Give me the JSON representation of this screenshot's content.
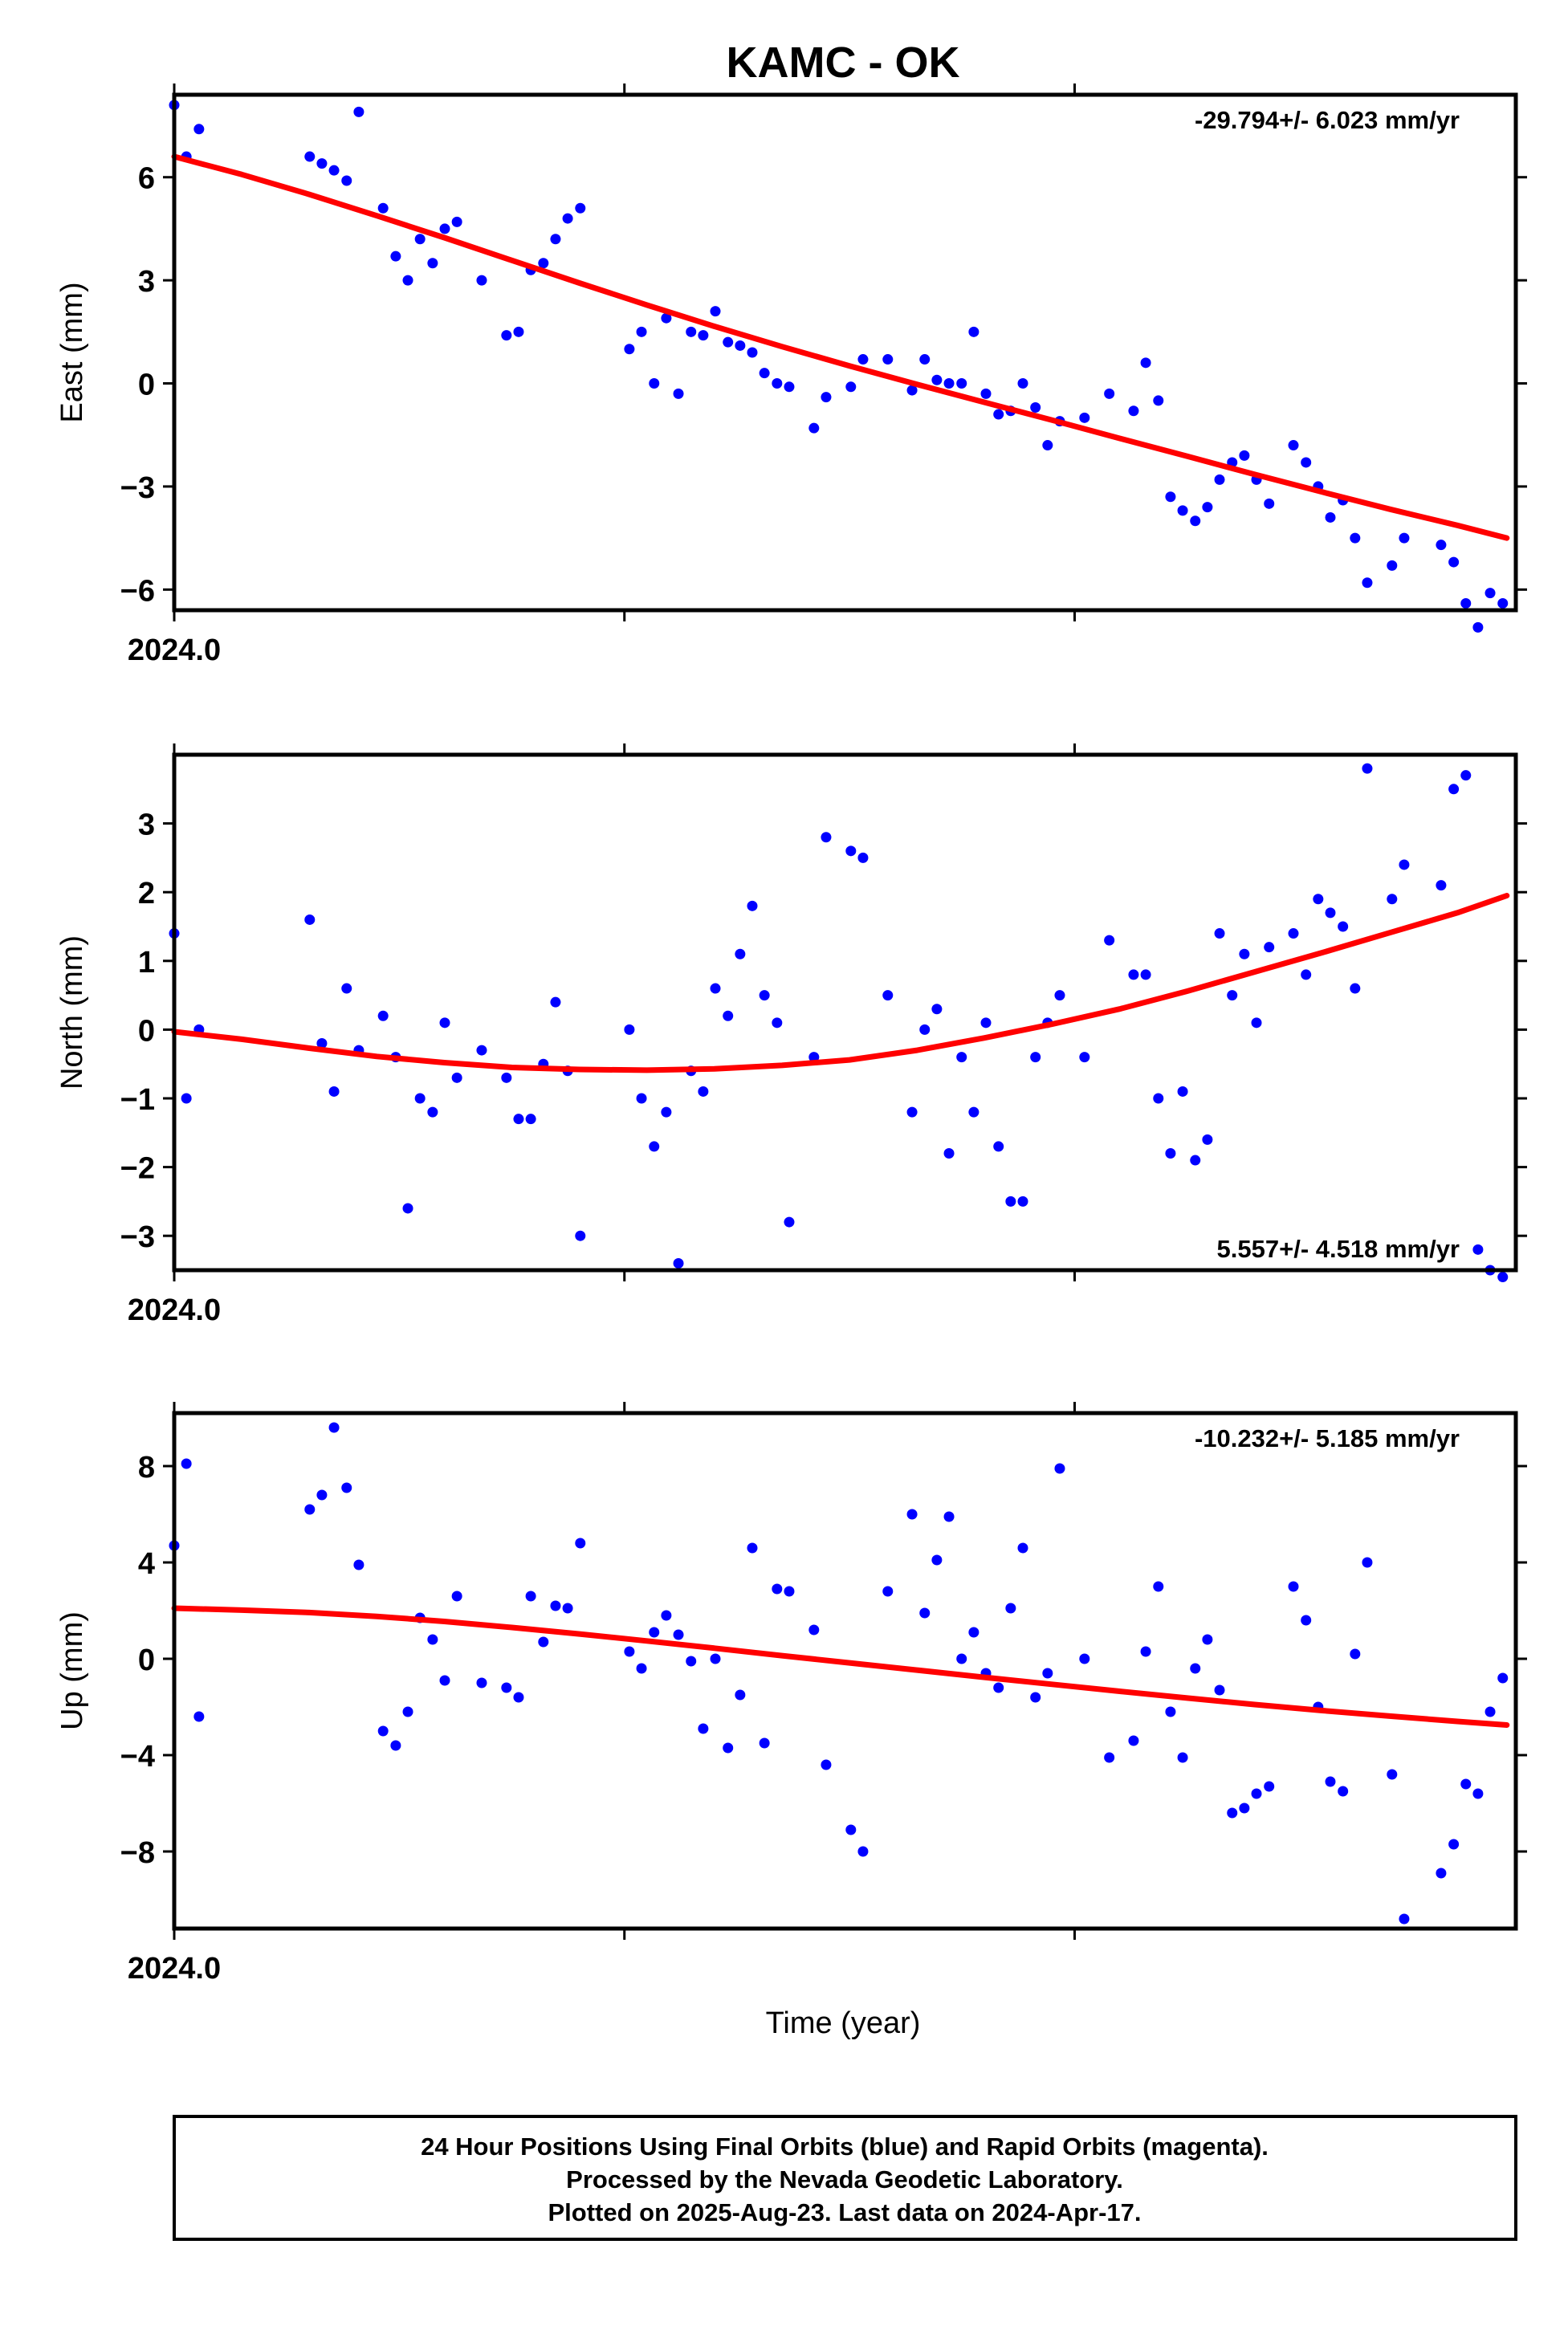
{
  "title": "KAMC - OK",
  "xlabel": "Time (year)",
  "footer": {
    "lines": [
      "24 Hour Positions Using Final Orbits (blue) and Rapid Orbits (magenta).",
      "Processed by the Nevada Geodetic Laboratory.",
      "Plotted on 2025-Aug-23. Last data on 2024-Apr-17."
    ]
  },
  "colors": {
    "points": "#0000ff",
    "fit": "#ff0000",
    "frame": "#000000"
  },
  "chart_data": [
    {
      "type": "scatter",
      "ylabel": "East (mm)",
      "rate_label": "-29.794+/- 6.023 mm/yr",
      "rate_position": "top-right",
      "xlim": [
        2024.0,
        2024.298
      ],
      "ylim": [
        -6.6,
        8.4
      ],
      "yticks": [
        -6,
        -3,
        0,
        3,
        6
      ],
      "ytick_labels": [
        "−6",
        "−3",
        "0",
        "3",
        "6"
      ],
      "xticks": [
        2024.0,
        2024.1,
        2024.2
      ],
      "xtick_labels": [
        "2024.0",
        "",
        ""
      ],
      "series": [
        {
          "kind": "points",
          "x": [
            2024.0,
            2024.0027,
            2024.0055,
            2024.0301,
            2024.0328,
            2024.0355,
            2024.0383,
            2024.041,
            2024.0464,
            2024.0492,
            2024.0519,
            2024.0546,
            2024.0574,
            2024.0601,
            2024.0628,
            2024.0683,
            2024.0738,
            2024.0765,
            2024.0792,
            2024.082,
            2024.0847,
            2024.0874,
            2024.0902,
            2024.1011,
            2024.1038,
            2024.1066,
            2024.1093,
            2024.112,
            2024.1148,
            2024.1175,
            2024.1202,
            2024.123,
            2024.1257,
            2024.1284,
            2024.1311,
            2024.1339,
            2024.1366,
            2024.1421,
            2024.1448,
            2024.1503,
            2024.153,
            2024.1585,
            2024.1639,
            2024.1667,
            2024.1694,
            2024.1721,
            2024.1749,
            2024.1776,
            2024.1803,
            2024.1831,
            2024.1858,
            2024.1885,
            2024.1913,
            2024.194,
            2024.1967,
            2024.2022,
            2024.2077,
            2024.2131,
            2024.2158,
            2024.2186,
            2024.2213,
            2024.224,
            2024.2268,
            2024.2295,
            2024.2322,
            2024.235,
            2024.2377,
            2024.2404,
            2024.2432,
            2024.2486,
            2024.2514,
            2024.2541,
            2024.2568,
            2024.2596,
            2024.2623,
            2024.265,
            2024.2705,
            2024.2732,
            2024.2814,
            2024.2842,
            2024.2869,
            2024.2896,
            2024.2923,
            2024.2951
          ],
          "y": [
            8.1,
            6.6,
            7.4,
            6.6,
            6.4,
            6.2,
            5.9,
            7.9,
            5.1,
            3.7,
            3.0,
            4.2,
            3.5,
            4.5,
            4.7,
            3.0,
            1.4,
            1.5,
            3.3,
            3.5,
            4.2,
            4.8,
            5.1,
            1.0,
            1.5,
            0.0,
            1.9,
            -0.3,
            1.5,
            1.4,
            2.1,
            1.2,
            1.1,
            0.9,
            0.3,
            0.0,
            -0.1,
            -1.3,
            -0.4,
            -0.1,
            0.7,
            0.7,
            -0.2,
            0.7,
            0.1,
            0.0,
            0.0,
            1.5,
            -0.3,
            -0.9,
            -0.8,
            0.0,
            -0.7,
            -1.8,
            -1.1,
            -1.0,
            -0.3,
            -0.8,
            0.6,
            -0.5,
            -3.3,
            -3.7,
            -4.0,
            -3.6,
            -2.8,
            -2.3,
            -2.1,
            -2.8,
            -3.5,
            -1.8,
            -2.3,
            -3.0,
            -3.9,
            -3.4,
            -4.5,
            -5.8,
            -5.3,
            -4.5,
            -4.7,
            -5.2,
            -6.4,
            -7.1,
            -6.1,
            -6.4
          ]
        },
        {
          "kind": "fit",
          "x": [
            2024.0,
            2024.015,
            2024.03,
            2024.045,
            2024.06,
            2024.075,
            2024.09,
            2024.105,
            2024.12,
            2024.135,
            2024.15,
            2024.165,
            2024.18,
            2024.195,
            2024.21,
            2024.225,
            2024.24,
            2024.255,
            2024.27,
            2024.285,
            2024.296
          ],
          "y": [
            6.6,
            6.08,
            5.5,
            4.88,
            4.24,
            3.58,
            2.92,
            2.28,
            1.66,
            1.07,
            0.51,
            -0.03,
            -0.55,
            -1.07,
            -1.6,
            -2.12,
            -2.65,
            -3.16,
            -3.66,
            -4.13,
            -4.5
          ]
        }
      ]
    },
    {
      "type": "scatter",
      "ylabel": "North (mm)",
      "rate_label": "5.557+/- 4.518 mm/yr",
      "rate_position": "bottom-right",
      "xlim": [
        2024.0,
        2024.298
      ],
      "ylim": [
        -3.5,
        4.0
      ],
      "yticks": [
        -3,
        -2,
        -1,
        0,
        1,
        2,
        3
      ],
      "ytick_labels": [
        "−3",
        "−2",
        "−1",
        "0",
        "1",
        "2",
        "3"
      ],
      "xticks": [
        2024.0,
        2024.1,
        2024.2
      ],
      "xtick_labels": [
        "2024.0",
        "",
        ""
      ],
      "series": [
        {
          "kind": "points",
          "x": [
            2024.0,
            2024.0027,
            2024.0055,
            2024.0301,
            2024.0328,
            2024.0355,
            2024.0383,
            2024.041,
            2024.0464,
            2024.0492,
            2024.0519,
            2024.0546,
            2024.0574,
            2024.0601,
            2024.0628,
            2024.0683,
            2024.0738,
            2024.0765,
            2024.0792,
            2024.082,
            2024.0847,
            2024.0874,
            2024.0902,
            2024.1011,
            2024.1038,
            2024.1066,
            2024.1093,
            2024.112,
            2024.1148,
            2024.1175,
            2024.1202,
            2024.123,
            2024.1257,
            2024.1284,
            2024.1311,
            2024.1339,
            2024.1366,
            2024.1421,
            2024.1448,
            2024.1503,
            2024.153,
            2024.1585,
            2024.1639,
            2024.1667,
            2024.1694,
            2024.1721,
            2024.1749,
            2024.1776,
            2024.1803,
            2024.1831,
            2024.1858,
            2024.1885,
            2024.1913,
            2024.194,
            2024.1967,
            2024.2022,
            2024.2077,
            2024.2131,
            2024.2158,
            2024.2186,
            2024.2213,
            2024.224,
            2024.2268,
            2024.2295,
            2024.2322,
            2024.235,
            2024.2377,
            2024.2404,
            2024.2432,
            2024.2486,
            2024.2514,
            2024.2541,
            2024.2568,
            2024.2596,
            2024.2623,
            2024.265,
            2024.2705,
            2024.2732,
            2024.2814,
            2024.2842,
            2024.2869,
            2024.2896,
            2024.2923,
            2024.2951
          ],
          "y": [
            1.4,
            -1.0,
            0.0,
            1.6,
            -0.2,
            -0.9,
            0.6,
            -0.3,
            0.2,
            -0.4,
            -2.6,
            -1.0,
            -1.2,
            0.1,
            -0.7,
            -0.3,
            -0.7,
            -1.3,
            -1.3,
            -0.5,
            0.4,
            -0.6,
            -3.0,
            0.0,
            -1.0,
            -1.7,
            -1.2,
            -3.4,
            -0.6,
            -0.9,
            0.6,
            0.2,
            1.1,
            1.8,
            0.5,
            0.1,
            -2.8,
            -0.4,
            2.8,
            2.6,
            2.5,
            0.5,
            -1.2,
            0.0,
            0.3,
            -1.8,
            -0.4,
            -1.2,
            0.1,
            -1.7,
            -2.5,
            -2.5,
            -0.4,
            0.1,
            0.5,
            -0.4,
            1.3,
            0.8,
            0.8,
            -1.0,
            -1.8,
            -0.9,
            -1.9,
            -1.6,
            1.4,
            0.5,
            1.1,
            0.1,
            1.2,
            1.4,
            0.8,
            1.9,
            1.7,
            1.5,
            0.6,
            3.8,
            1.9,
            2.4,
            2.1,
            3.5,
            3.7,
            -3.2,
            -3.5,
            -3.6
          ]
        },
        {
          "kind": "fit",
          "x": [
            2024.0,
            2024.015,
            2024.03,
            2024.045,
            2024.06,
            2024.075,
            2024.09,
            2024.105,
            2024.12,
            2024.135,
            2024.15,
            2024.165,
            2024.18,
            2024.195,
            2024.21,
            2024.225,
            2024.24,
            2024.255,
            2024.27,
            2024.285,
            2024.296
          ],
          "y": [
            -0.03,
            -0.14,
            -0.27,
            -0.39,
            -0.48,
            -0.55,
            -0.58,
            -0.59,
            -0.57,
            -0.52,
            -0.44,
            -0.3,
            -0.12,
            0.08,
            0.3,
            0.56,
            0.84,
            1.12,
            1.41,
            1.7,
            1.95
          ]
        }
      ]
    },
    {
      "type": "scatter",
      "ylabel": "Up (mm)",
      "rate_label": "-10.232+/- 5.185 mm/yr",
      "rate_position": "top-right",
      "xlim": [
        2024.0,
        2024.298
      ],
      "ylim": [
        -11.2,
        10.2
      ],
      "yticks": [
        -8,
        -4,
        0,
        4,
        8
      ],
      "ytick_labels": [
        "−8",
        "−4",
        "0",
        "4",
        "8"
      ],
      "xticks": [
        2024.0,
        2024.1,
        2024.2
      ],
      "xtick_labels": [
        "2024.0",
        "",
        ""
      ],
      "series": [
        {
          "kind": "points",
          "x": [
            2024.0,
            2024.0027,
            2024.0055,
            2024.0301,
            2024.0328,
            2024.0355,
            2024.0383,
            2024.041,
            2024.0464,
            2024.0492,
            2024.0519,
            2024.0546,
            2024.0574,
            2024.0601,
            2024.0628,
            2024.0683,
            2024.0738,
            2024.0765,
            2024.0792,
            2024.082,
            2024.0847,
            2024.0874,
            2024.0902,
            2024.1011,
            2024.1038,
            2024.1066,
            2024.1093,
            2024.112,
            2024.1148,
            2024.1175,
            2024.1202,
            2024.123,
            2024.1257,
            2024.1284,
            2024.1311,
            2024.1339,
            2024.1366,
            2024.1421,
            2024.1448,
            2024.1503,
            2024.153,
            2024.1585,
            2024.1639,
            2024.1667,
            2024.1694,
            2024.1721,
            2024.1749,
            2024.1776,
            2024.1803,
            2024.1831,
            2024.1858,
            2024.1885,
            2024.1913,
            2024.194,
            2024.1967,
            2024.2022,
            2024.2077,
            2024.2131,
            2024.2158,
            2024.2186,
            2024.2213,
            2024.224,
            2024.2268,
            2024.2295,
            2024.2322,
            2024.235,
            2024.2377,
            2024.2404,
            2024.2432,
            2024.2486,
            2024.2514,
            2024.2541,
            2024.2568,
            2024.2596,
            2024.2623,
            2024.265,
            2024.2705,
            2024.2732,
            2024.2814,
            2024.2842,
            2024.2869,
            2024.2896,
            2024.2923,
            2024.2951
          ],
          "y": [
            4.7,
            8.1,
            -2.4,
            6.2,
            6.8,
            9.6,
            7.1,
            3.9,
            -3.0,
            -3.6,
            -2.2,
            1.7,
            0.8,
            -0.9,
            2.6,
            -1.0,
            -1.2,
            -1.6,
            2.6,
            0.7,
            2.2,
            2.1,
            4.8,
            0.3,
            -0.4,
            1.1,
            1.8,
            1.0,
            -0.1,
            -2.9,
            0.0,
            -3.7,
            -1.5,
            4.6,
            -3.5,
            2.9,
            2.8,
            1.2,
            -4.4,
            -7.1,
            -8.0,
            2.8,
            6.0,
            1.9,
            4.1,
            5.9,
            0.0,
            1.1,
            -0.6,
            -1.2,
            2.1,
            4.6,
            -1.6,
            -0.6,
            7.9,
            0.0,
            -4.1,
            -3.4,
            0.3,
            3.0,
            -2.2,
            -4.1,
            -0.4,
            0.8,
            -1.3,
            -6.4,
            -6.2,
            -5.6,
            -5.3,
            3.0,
            1.6,
            -2.0,
            -5.1,
            -5.5,
            0.2,
            4.0,
            -4.8,
            -10.8,
            -8.9,
            -7.7,
            -5.2,
            -5.6,
            -2.2,
            -0.8
          ]
        },
        {
          "kind": "fit",
          "x": [
            2024.0,
            2024.015,
            2024.03,
            2024.045,
            2024.06,
            2024.075,
            2024.09,
            2024.105,
            2024.12,
            2024.135,
            2024.15,
            2024.165,
            2024.18,
            2024.195,
            2024.21,
            2024.225,
            2024.24,
            2024.255,
            2024.27,
            2024.285,
            2024.296
          ],
          "y": [
            2.1,
            2.02,
            1.92,
            1.76,
            1.55,
            1.3,
            1.03,
            0.74,
            0.44,
            0.13,
            -0.17,
            -0.47,
            -0.77,
            -1.06,
            -1.35,
            -1.63,
            -1.9,
            -2.15,
            -2.38,
            -2.6,
            -2.75
          ]
        }
      ]
    }
  ]
}
